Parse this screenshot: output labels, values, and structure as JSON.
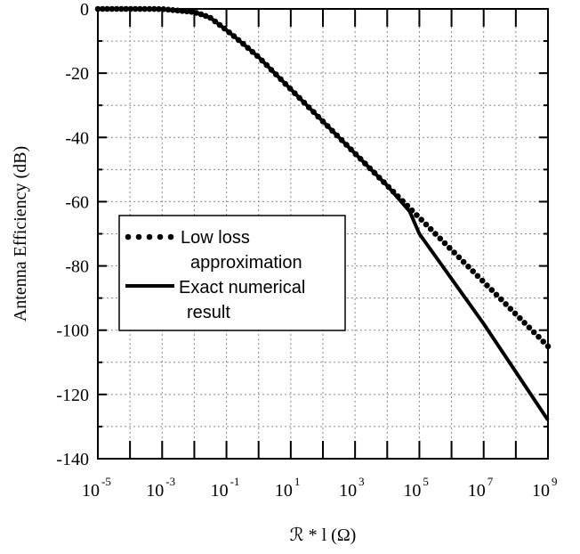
{
  "chart_data": {
    "type": "line",
    "title": "",
    "xlabel": "ℛ * l (Ω)",
    "ylabel": "Antenna Efficiency (dB)",
    "x_scale": "log",
    "xlim": [
      1e-05,
      1000000000.0
    ],
    "ylim": [
      -140,
      0
    ],
    "grid": true,
    "legend_position": "left",
    "x_ticks": [
      {
        "base": "10",
        "exp": "-5"
      },
      {
        "base": "10",
        "exp": "-3"
      },
      {
        "base": "10",
        "exp": "-1"
      },
      {
        "base": "10",
        "exp": "1"
      },
      {
        "base": "10",
        "exp": "3"
      },
      {
        "base": "10",
        "exp": "5"
      },
      {
        "base": "10",
        "exp": "7"
      },
      {
        "base": "10",
        "exp": "9"
      }
    ],
    "y_ticks": [
      "0",
      "-20",
      "-40",
      "-60",
      "-80",
      "-100",
      "-120",
      "-140"
    ],
    "series": [
      {
        "name": "Low loss approximation",
        "style": "dotted",
        "x": [
          1e-05,
          0.0001,
          0.001,
          0.01,
          0.03,
          0.1,
          0.3,
          1,
          10,
          100,
          1000,
          10000,
          100000,
          1000000,
          10000000,
          100000000,
          1000000000
        ],
        "y": [
          0,
          0,
          -0.05,
          -1.0,
          -2.6,
          -6.6,
          -10.5,
          -15,
          -25,
          -35,
          -45,
          -55,
          -65,
          -75,
          -85,
          -95,
          -105
        ]
      },
      {
        "name": "Exact numerical result",
        "style": "solid",
        "x": [
          1e-05,
          0.0001,
          0.001,
          0.01,
          0.03,
          0.1,
          0.3,
          1,
          10,
          100,
          1000,
          10000,
          50000,
          100000,
          1000000,
          10000000,
          100000000,
          1000000000
        ],
        "y": [
          0,
          0,
          -0.05,
          -1.0,
          -2.6,
          -6.6,
          -10.5,
          -15,
          -25,
          -35,
          -45,
          -55,
          -63,
          -70,
          -84,
          -98,
          -113,
          -128
        ]
      }
    ],
    "legend": [
      {
        "lines": [
          "Low loss",
          "approximation"
        ]
      },
      {
        "lines": [
          "Exact numerical",
          "result"
        ]
      }
    ]
  }
}
